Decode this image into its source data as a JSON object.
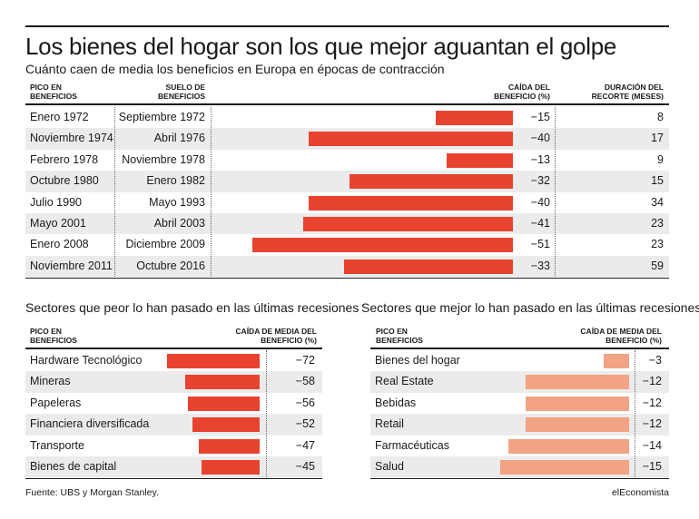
{
  "title": "Los bienes del hogar son los que mejor aguantan el golpe",
  "subtitle": "Cuánto caen de media los beneficios en Europa en épocas de contracción",
  "colors": {
    "main_bar": "#e8432f",
    "better_bar": "#f2a383",
    "text": "#1a1a1a",
    "shade": "#ebebeb"
  },
  "chart_data": [
    {
      "type": "bar",
      "orientation": "horizontal",
      "title": "Cuánto caen de media los beneficios en Europa en épocas de contracción",
      "headers": {
        "peak": "PICO EN BENEFICIOS",
        "trough": "SUELO DE BENEFICIOS",
        "drop": "CAÍDA DEL BENEFICIO (%)",
        "duration": "DURACIÓN DEL RECORTE (MESES)"
      },
      "peaks": [
        "Enero 1972",
        "Noviembre 1974",
        "Febrero 1978",
        "Octubre 1980",
        "Julio 1990",
        "Mayo 2001",
        "Enero 2008",
        "Noviembre 2011"
      ],
      "troughs": [
        "Septiembre 1972",
        "Abril 1976",
        "Noviembre 1978",
        "Enero 1982",
        "Mayo 1993",
        "Abril 2003",
        "Diciembre 2009",
        "Octubre 2016"
      ],
      "values": [
        -15,
        -40,
        -13,
        -32,
        -40,
        -41,
        -51,
        -33
      ],
      "value_labels": [
        "−15",
        "−40",
        "−13",
        "−32",
        "−40",
        "−41",
        "−51",
        "−33"
      ],
      "durations": [
        8,
        17,
        9,
        15,
        34,
        23,
        23,
        59
      ],
      "xlim": [
        -55,
        0
      ],
      "color": "#e8432f"
    },
    {
      "type": "bar",
      "orientation": "horizontal",
      "title": "Sectores que peor lo han pasado en las últimas recesiones",
      "headers": {
        "category": "PICO EN BENEFICIOS",
        "value": "CAÍDA DE MEDIA DEL BENEFICIO (%)"
      },
      "categories": [
        "Hardware Tecnológico",
        "Mineras",
        "Papeleras",
        "Financiera diversificada",
        "Transporte",
        "Bienes de capital"
      ],
      "values": [
        -72,
        -58,
        -56,
        -52,
        -47,
        -45
      ],
      "value_labels": [
        "−72",
        "−58",
        "−56",
        "−52",
        "−47",
        "−45"
      ],
      "xlim": [
        -72,
        0
      ],
      "color": "#e8432f"
    },
    {
      "type": "bar",
      "orientation": "horizontal",
      "title": "Sectores que mejor lo han pasado en las últimas recesiones",
      "headers": {
        "category": "PICO EN BENEFICIOS",
        "value": "CAÍDA DE MEDIA DEL BENEFICIO (%)"
      },
      "categories": [
        "Bienes del hogar",
        "Real Estate",
        "Bebidas",
        "Retail",
        "Farmacéuticas",
        "Salud"
      ],
      "values": [
        -3,
        -12,
        -12,
        -12,
        -14,
        -15
      ],
      "value_labels": [
        "−3",
        "−12",
        "−12",
        "−12",
        "−14",
        "−15"
      ],
      "xlim": [
        -15,
        0
      ],
      "color": "#f2a383"
    }
  ],
  "source": "Fuente: UBS y Morgan Stanley.",
  "brand": "elEconomista"
}
